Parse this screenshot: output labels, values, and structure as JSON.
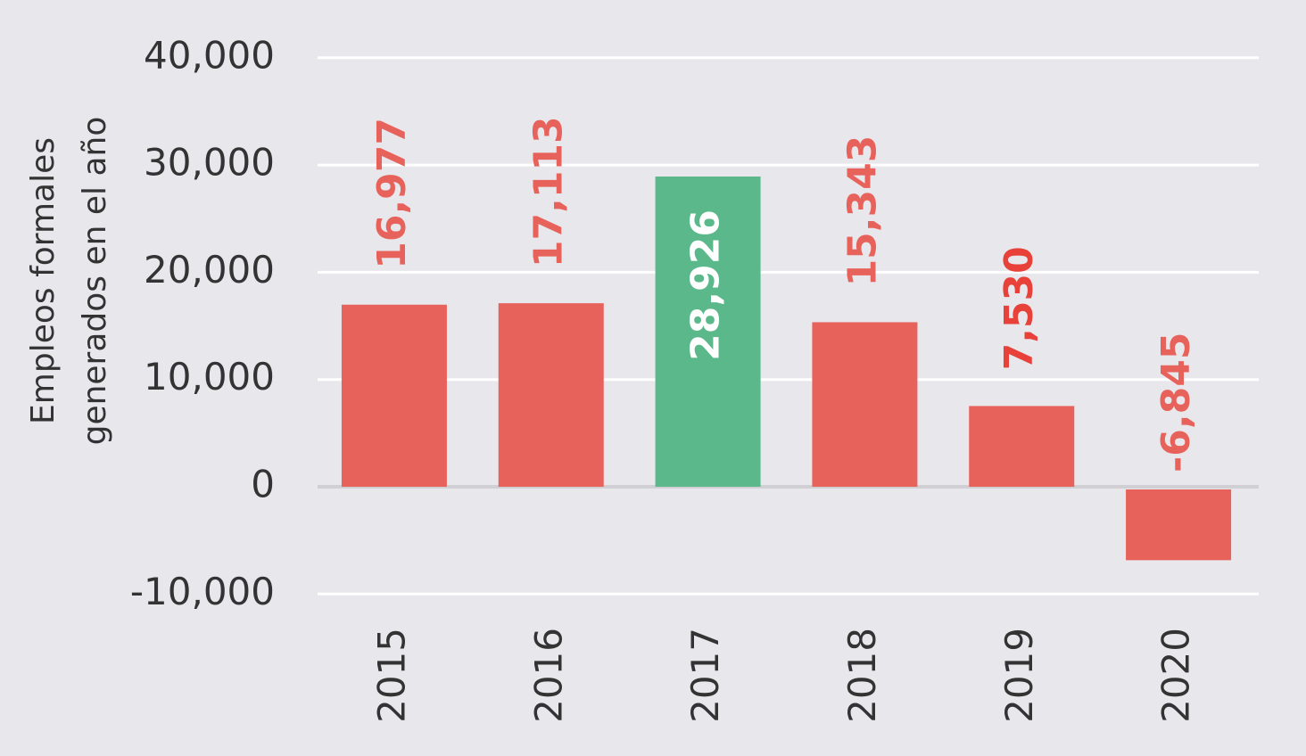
{
  "chart_data": {
    "type": "bar",
    "y_label": [
      "Empleos formales",
      "generados en el año"
    ],
    "categories": [
      "2015",
      "2016",
      "2017",
      "2018",
      "2019",
      "2020"
    ],
    "values": [
      16977,
      17113,
      28926,
      15343,
      7530,
      -6845
    ],
    "value_labels": [
      "16,977",
      "17,113",
      "28,926",
      "15,343",
      "7,530",
      "-6,845"
    ],
    "colors": [
      "#e8625c",
      "#e8625c",
      "#5ab88a",
      "#e8625c",
      "#e8625c",
      "#e8625c"
    ],
    "label_colors": [
      "#e8625c",
      "#e8625c",
      "#ffffff",
      "#e8625c",
      "#e8413a",
      "#e8625c"
    ],
    "label_positions": [
      "outside",
      "outside",
      "inside",
      "outside",
      "outside",
      "outside"
    ],
    "ylim": [
      -12000,
      41000
    ],
    "yticks": [
      {
        "value": -10000,
        "label": "-10,000"
      },
      0,
      {
        "value": 10000,
        "label": "10,000"
      },
      {
        "value": 20000,
        "label": "20,000"
      },
      {
        "value": 30000,
        "label": "30,000"
      },
      {
        "value": 40000,
        "label": "40,000"
      }
    ],
    "grid": true
  }
}
